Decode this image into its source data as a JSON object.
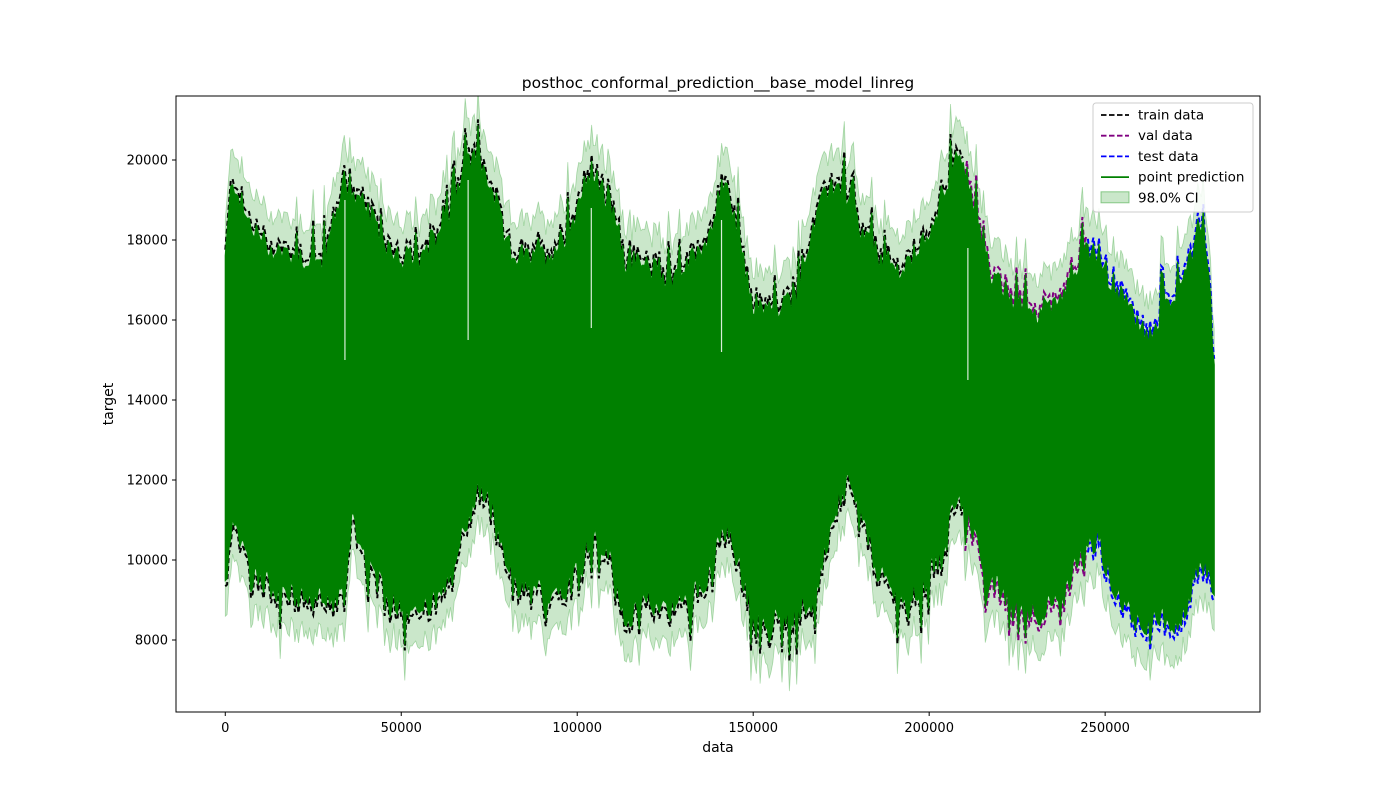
{
  "chart_data": {
    "type": "line",
    "title": "posthoc_conformal_prediction__base_model_linreg",
    "xlabel": "data",
    "ylabel": "target",
    "xlim": [
      -14000,
      294000
    ],
    "ylim": [
      6200,
      21600
    ],
    "xticks": [
      0,
      50000,
      100000,
      150000,
      200000,
      250000
    ],
    "xtick_labels": [
      "0",
      "50000",
      "100000",
      "150000",
      "200000",
      "250000"
    ],
    "yticks": [
      8000,
      10000,
      12000,
      14000,
      16000,
      18000,
      20000
    ],
    "ytick_labels": [
      "8000",
      "10000",
      "12000",
      "14000",
      "16000",
      "18000",
      "20000"
    ],
    "grid": false,
    "legend_position": "top-right",
    "series": [
      {
        "name": "train data",
        "style": "dashed",
        "color": "#000000",
        "x_range": [
          0,
          210000
        ]
      },
      {
        "name": "val data",
        "style": "dashed",
        "color": "#800080",
        "x_range": [
          210000,
          245000
        ]
      },
      {
        "name": "test data",
        "style": "dashed",
        "color": "#0000ff",
        "x_range": [
          245000,
          281000
        ]
      },
      {
        "name": "point prediction",
        "style": "solid",
        "color": "#008000",
        "x_range": [
          0,
          281000
        ]
      },
      {
        "name": "98.0% CI",
        "style": "band",
        "color": "#2ca02c",
        "opacity": 0.25,
        "x_range": [
          0,
          281000
        ]
      }
    ],
    "envelope": {
      "x": [
        0,
        2000,
        6000,
        12000,
        20000,
        28000,
        34000,
        36000,
        40000,
        44000,
        50000,
        56000,
        62000,
        68000,
        72000,
        76000,
        80000,
        86000,
        92000,
        98000,
        104000,
        110000,
        114000,
        120000,
        126000,
        132000,
        138000,
        142000,
        146000,
        150000,
        156000,
        162000,
        168000,
        172000,
        176000,
        180000,
        186000,
        192000,
        198000,
        204000,
        208000,
        212000,
        216000,
        220000,
        226000,
        232000,
        238000,
        244000,
        248000,
        252000,
        258000,
        262000,
        266000,
        270000,
        274000,
        278000,
        281000
      ],
      "upper": [
        17500,
        19600,
        18500,
        17800,
        17600,
        17400,
        19600,
        19000,
        18800,
        18000,
        17600,
        17400,
        18200,
        19900,
        20000,
        19200,
        17800,
        17500,
        17600,
        18300,
        19700,
        18700,
        17400,
        17300,
        17000,
        17400,
        18200,
        19600,
        17800,
        16400,
        16200,
        16500,
        18500,
        19400,
        19200,
        18300,
        17500,
        17200,
        17800,
        19200,
        20000,
        19300,
        17500,
        16800,
        16300,
        16200,
        16700,
        17800,
        17600,
        16900,
        16100,
        15500,
        16200,
        16600,
        17500,
        18600,
        15000
      ],
      "lower": [
        9400,
        10800,
        10100,
        9400,
        9100,
        9000,
        9100,
        11200,
        10000,
        9400,
        8900,
        8800,
        9100,
        10800,
        11800,
        11300,
        9800,
        9200,
        9200,
        9400,
        10700,
        9900,
        8400,
        9000,
        8800,
        9000,
        9800,
        10900,
        9900,
        8700,
        8500,
        8700,
        9300,
        10800,
        12000,
        11300,
        9600,
        9000,
        9300,
        10500,
        11700,
        10800,
        9800,
        9200,
        8900,
        8700,
        9000,
        10400,
        10500,
        9500,
        8600,
        8400,
        8500,
        8500,
        9000,
        10300,
        8900
      ]
    }
  }
}
